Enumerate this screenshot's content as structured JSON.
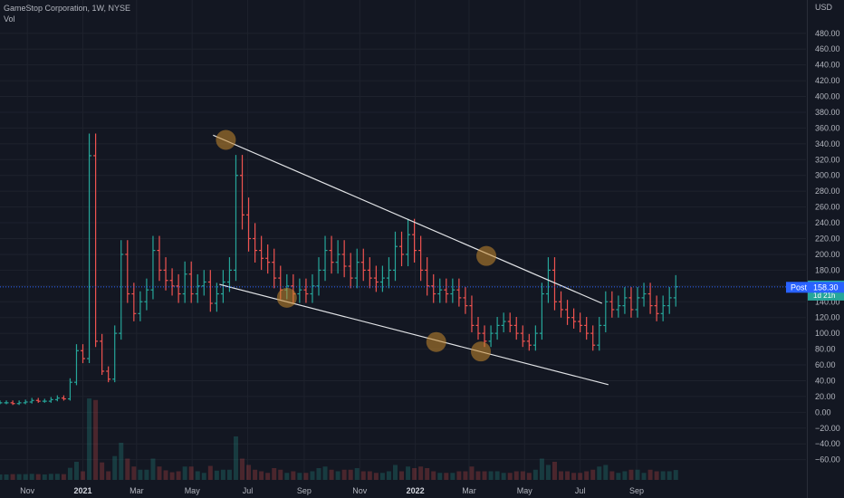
{
  "chart_data": {
    "type": "ohlc",
    "title": "GameStop Corporation, 1W, NYSE",
    "volume_label": "Vol",
    "currency": "USD",
    "ylim": [
      -65,
      505
    ],
    "y_ticks": [
      480,
      460,
      440,
      420,
      400,
      380,
      360,
      340,
      320,
      300,
      280,
      260,
      240,
      220,
      200,
      180,
      160,
      140,
      120,
      100,
      80,
      60,
      40,
      20,
      0,
      -20,
      -40,
      -60
    ],
    "y_tick_labels": [
      "480.00",
      "460.00",
      "440.00",
      "420.00",
      "400.00",
      "380.00",
      "360.00",
      "340.00",
      "320.00",
      "300.00",
      "280.00",
      "260.00",
      "240.00",
      "220.00",
      "200.00",
      "180.00",
      "160.00",
      "140.00",
      "120.00",
      "100.00",
      "80.00",
      "60.00",
      "40.00",
      "20.00",
      "0.00",
      "−20.00",
      "−40.00",
      "−60.00"
    ],
    "x_start": "2020-10-02",
    "x_ticks": [
      {
        "label": "Nov",
        "date": "2020-11-01",
        "bold": false
      },
      {
        "label": "2021",
        "date": "2021-01-01",
        "bold": true
      },
      {
        "label": "Mar",
        "date": "2021-03-01",
        "bold": false
      },
      {
        "label": "May",
        "date": "2021-05-01",
        "bold": false
      },
      {
        "label": "Jul",
        "date": "2021-07-01",
        "bold": false
      },
      {
        "label": "Sep",
        "date": "2021-09-01",
        "bold": false
      },
      {
        "label": "Nov",
        "date": "2021-11-01",
        "bold": false
      },
      {
        "label": "2022",
        "date": "2022-01-01",
        "bold": true
      },
      {
        "label": "Mar",
        "date": "2022-03-01",
        "bold": false
      },
      {
        "label": "May",
        "date": "2022-05-01",
        "bold": false
      },
      {
        "label": "Jul",
        "date": "2022-07-01",
        "bold": false
      },
      {
        "label": "Sep",
        "date": "2022-09-01",
        "bold": false
      }
    ],
    "last_price": {
      "value": 158.75,
      "label": "158.75",
      "countdown": "1d 21h"
    },
    "post_price": {
      "tag": "Post",
      "value": 158.3,
      "label": "158.30"
    },
    "closes": [
      12,
      12,
      11,
      12,
      13,
      15,
      14,
      14,
      16,
      18,
      17,
      38,
      78,
      68,
      325,
      90,
      52,
      42,
      100,
      200,
      150,
      125,
      140,
      155,
      205,
      180,
      167,
      160,
      150,
      175,
      150,
      160,
      165,
      138,
      150,
      165,
      180,
      300,
      250,
      220,
      205,
      195,
      190,
      170,
      155,
      160,
      150,
      155,
      150,
      160,
      180,
      205,
      190,
      200,
      185,
      170,
      190,
      180,
      170,
      165,
      170,
      180,
      210,
      200,
      225,
      205,
      180,
      160,
      150,
      155,
      150,
      155,
      145,
      135,
      110,
      100,
      90,
      100,
      110,
      115,
      110,
      100,
      90,
      85,
      100,
      150,
      180,
      140,
      130,
      120,
      115,
      110,
      100,
      85,
      110,
      140,
      130,
      135,
      145,
      130,
      145,
      150,
      135,
      125,
      135,
      145,
      159
    ],
    "trendlines": [
      {
        "start": {
          "date": "2021-05-24",
          "value": 351
        },
        "end": {
          "date": "2022-07-25",
          "value": 138
        }
      },
      {
        "start": {
          "date": "2021-05-31",
          "value": 162
        },
        "end": {
          "date": "2022-08-01",
          "value": 35
        }
      }
    ],
    "touch_points": [
      {
        "date": "2021-06-07",
        "value": 345
      },
      {
        "date": "2021-08-13",
        "value": 145
      },
      {
        "date": "2022-03-20",
        "value": 198
      },
      {
        "date": "2022-01-24",
        "value": 89
      },
      {
        "date": "2022-03-14",
        "value": 77
      }
    ],
    "colors": {
      "up": "#26a69a",
      "down": "#ef5350",
      "price_tag": "#26a69a",
      "post_tag": "#2962ff",
      "trendline": "#e1e3e6",
      "touch": "#c98a2e",
      "grid": "#1e222d"
    }
  }
}
